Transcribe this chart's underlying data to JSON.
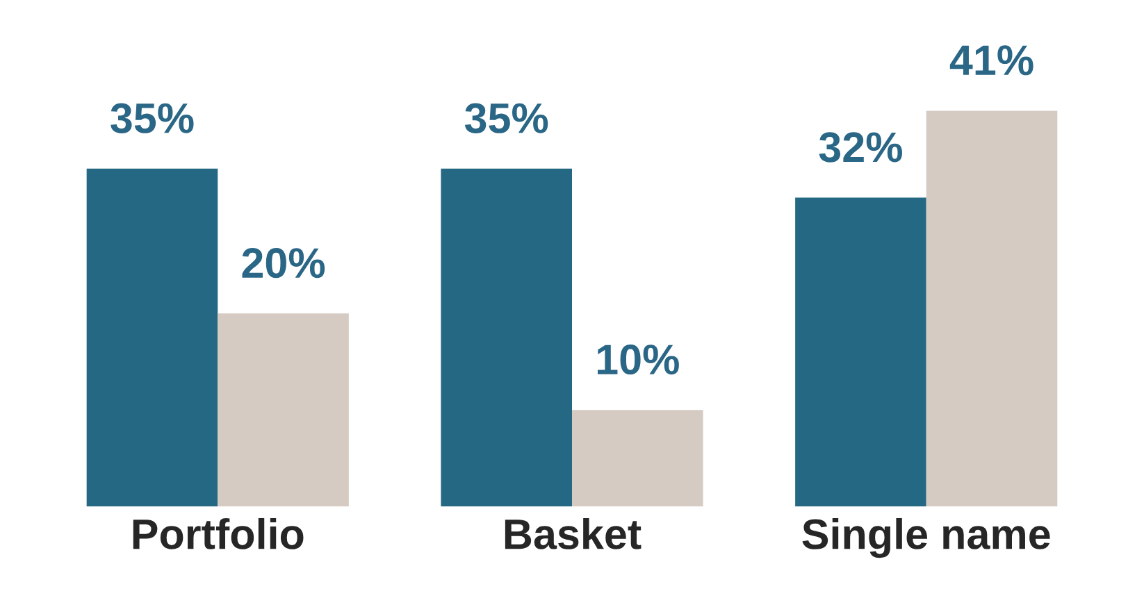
{
  "chart_data": {
    "type": "bar",
    "categories": [
      "Portfolio",
      "Basket",
      "Single name"
    ],
    "series": [
      {
        "color": "#256884",
        "values": [
          35,
          35,
          32
        ],
        "value_labels": [
          "35%",
          "35%",
          "32%"
        ]
      },
      {
        "color": "#d5cbc2",
        "values": [
          20,
          10,
          41
        ],
        "value_labels": [
          "20%",
          "10%",
          "41%"
        ]
      }
    ]
  }
}
